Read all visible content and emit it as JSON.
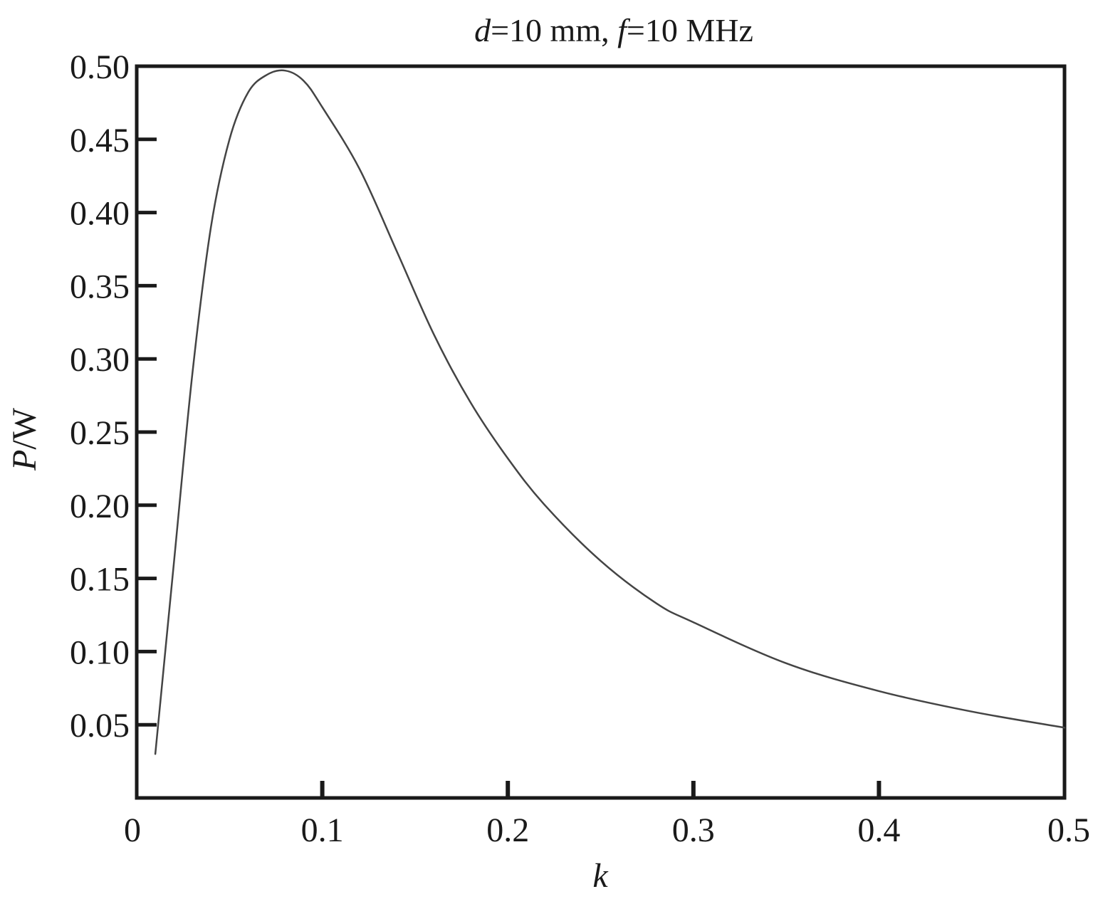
{
  "chart_data": {
    "type": "line",
    "title": {
      "d_symbol": "d",
      "d_value": "=10 mm, ",
      "f_symbol": "f",
      "f_value": "=10 MHz"
    },
    "xlabel": "k",
    "ylabel": {
      "symbol": "P",
      "unit": "/W"
    },
    "xlim": [
      0,
      0.5
    ],
    "ylim": [
      0,
      0.5
    ],
    "x_ticks": [
      0,
      0.1,
      0.2,
      0.3,
      0.4,
      0.5
    ],
    "x_tick_labels": [
      "0",
      "0.1",
      "0.2",
      "0.3",
      "0.4",
      "0.5"
    ],
    "y_ticks": [
      0.05,
      0.1,
      0.15,
      0.2,
      0.25,
      0.3,
      0.35,
      0.4,
      0.45,
      0.5
    ],
    "y_tick_labels": [
      "0.05",
      "0.10",
      "0.15",
      "0.20",
      "0.25",
      "0.30",
      "0.35",
      "0.40",
      "0.45",
      "0.50"
    ],
    "grid": false,
    "line_color": "#444444",
    "series": [
      {
        "x": [
          0.01,
          0.02,
          0.03,
          0.04,
          0.05,
          0.06,
          0.07,
          0.08,
          0.09,
          0.1,
          0.12,
          0.14,
          0.16,
          0.18,
          0.2,
          0.22,
          0.25,
          0.28,
          0.3,
          0.35,
          0.4,
          0.45,
          0.5
        ],
        "y": [
          0.03,
          0.16,
          0.29,
          0.39,
          0.45,
          0.482,
          0.494,
          0.497,
          0.49,
          0.472,
          0.43,
          0.374,
          0.317,
          0.27,
          0.232,
          0.2,
          0.162,
          0.133,
          0.12,
          0.092,
          0.073,
          0.059,
          0.048
        ]
      }
    ]
  }
}
